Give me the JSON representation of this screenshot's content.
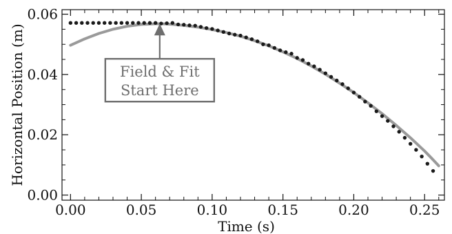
{
  "chart_data": {
    "type": "scatter",
    "xlabel": "Time (s)",
    "ylabel": "Horizontal Position (m)",
    "xlim": [
      -0.006,
      0.264
    ],
    "ylim": [
      -0.0017,
      0.0615
    ],
    "x_ticks": [
      0.0,
      0.05,
      0.1,
      0.15,
      0.2,
      0.25
    ],
    "x_tick_labels": [
      "0.00",
      "0.05",
      "0.10",
      "0.15",
      "0.20",
      "0.25"
    ],
    "y_ticks": [
      0.0,
      0.02,
      0.04,
      0.06
    ],
    "y_tick_labels": [
      "0.00",
      "0.02",
      "0.04",
      "0.06"
    ],
    "grid": false,
    "series": [
      {
        "kind": "points",
        "color": "#1a1a1a",
        "x": [
          0.0,
          0.004,
          0.008,
          0.012,
          0.016,
          0.02,
          0.024,
          0.028,
          0.032,
          0.036,
          0.04,
          0.044,
          0.048,
          0.052,
          0.056,
          0.06,
          0.064,
          0.068,
          0.072,
          0.076,
          0.08,
          0.084,
          0.088,
          0.092,
          0.096,
          0.1,
          0.104,
          0.108,
          0.112,
          0.116,
          0.12,
          0.124,
          0.128,
          0.132,
          0.136,
          0.14,
          0.144,
          0.148,
          0.152,
          0.156,
          0.16,
          0.164,
          0.168,
          0.172,
          0.176,
          0.18,
          0.184,
          0.188,
          0.192,
          0.196,
          0.2,
          0.204,
          0.208,
          0.212,
          0.216,
          0.22,
          0.224,
          0.228,
          0.232,
          0.236,
          0.24,
          0.244,
          0.248,
          0.252,
          0.256
        ],
        "y": [
          0.0571,
          0.0571,
          0.0571,
          0.0571,
          0.0571,
          0.0571,
          0.0571,
          0.0571,
          0.0571,
          0.0571,
          0.0571,
          0.0571,
          0.0571,
          0.0571,
          0.0571,
          0.0571,
          0.0569,
          0.057,
          0.0571,
          0.0566,
          0.0565,
          0.0563,
          0.0562,
          0.0558,
          0.0554,
          0.0551,
          0.0546,
          0.0541,
          0.0536,
          0.0532,
          0.0529,
          0.0523,
          0.0517,
          0.051,
          0.05,
          0.0497,
          0.0488,
          0.048,
          0.0474,
          0.0469,
          0.0455,
          0.0448,
          0.0436,
          0.0427,
          0.0416,
          0.0404,
          0.0392,
          0.038,
          0.0368,
          0.0354,
          0.034,
          0.0326,
          0.031,
          0.0296,
          0.0278,
          0.0262,
          0.0246,
          0.0228,
          0.021,
          0.019,
          0.017,
          0.015,
          0.0128,
          0.0104,
          0.008
        ]
      },
      {
        "kind": "fit-line",
        "color": "#9a9a9a",
        "x": [
          0.0,
          0.01,
          0.02,
          0.03,
          0.04,
          0.05,
          0.06,
          0.065,
          0.07,
          0.08,
          0.09,
          0.1,
          0.11,
          0.12,
          0.13,
          0.14,
          0.15,
          0.16,
          0.17,
          0.18,
          0.19,
          0.2,
          0.21,
          0.22,
          0.23,
          0.24,
          0.25,
          0.255,
          0.26
        ],
        "y": [
          0.0497,
          0.0518,
          0.0536,
          0.055,
          0.056,
          0.0566,
          0.0568,
          0.0568,
          0.0567,
          0.0563,
          0.0557,
          0.0549,
          0.0539,
          0.0527,
          0.0512,
          0.0495,
          0.0475,
          0.0453,
          0.0428,
          0.0401,
          0.0371,
          0.034,
          0.0306,
          0.027,
          0.0231,
          0.019,
          0.0146,
          0.0122,
          0.0097
        ]
      }
    ],
    "annotation": {
      "lines": [
        "Field & Fit",
        "Start Here"
      ],
      "arrow_target": [
        0.063,
        0.0571
      ],
      "color": "#6e6e6e"
    }
  }
}
